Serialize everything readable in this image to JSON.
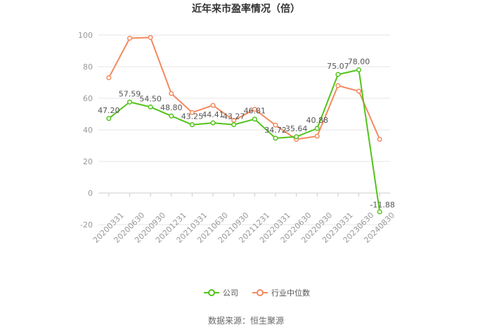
{
  "chart_data": {
    "type": "line",
    "title": "近年来市盈率情况（倍）",
    "categories": [
      "20200331",
      "20200630",
      "20200930",
      "20201231",
      "20210331",
      "20210630",
      "20210930",
      "20211231",
      "20220331",
      "20220630",
      "20220930",
      "20230331",
      "20230630",
      "20240830"
    ],
    "series": [
      {
        "name": "公司",
        "color": "#52c41a",
        "values": [
          47.2,
          57.59,
          54.5,
          48.8,
          43.25,
          44.41,
          43.27,
          46.81,
          34.72,
          35.64,
          40.88,
          75.07,
          78.0,
          -11.88
        ],
        "labels": [
          "47.20",
          "57.59",
          "54.50",
          "48.80",
          "43.25",
          "44.41",
          "43.27",
          "46.81",
          "34.72",
          "35.64",
          "40.88",
          "75.07",
          "78.00",
          "-11.88"
        ]
      },
      {
        "name": "行业中位数",
        "color": "#f4895f",
        "values": [
          73,
          98,
          98.5,
          63,
          51,
          55.5,
          46,
          53,
          43,
          34,
          36,
          68,
          64.5,
          34
        ]
      }
    ],
    "ylim": [
      -20,
      100
    ],
    "yticks": [
      -20,
      0,
      20,
      40,
      60,
      80,
      100
    ],
    "grid": true,
    "legend": "bottom",
    "source": "数据来源：恒生聚源"
  }
}
